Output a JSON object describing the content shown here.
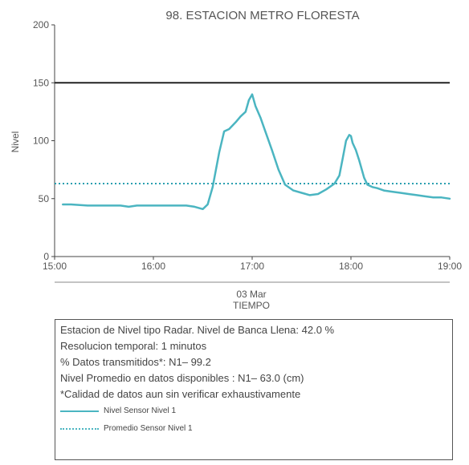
{
  "chart_data": {
    "type": "line",
    "title": "98. ESTACION METRO FLORESTA",
    "ylabel": "Nivel",
    "xlabel": "TIEMPO",
    "date_label": "03 Mar",
    "ylim": [
      0,
      200
    ],
    "xlim": [
      "15:00",
      "19:00"
    ],
    "y_ticks": [
      "0",
      "50",
      "100",
      "150",
      "200"
    ],
    "x_ticks": [
      "15:00",
      "16:00",
      "17:00",
      "18:00",
      "19:00"
    ],
    "reference_lines": [
      {
        "value": 150,
        "color": "#222222",
        "style": "solid"
      },
      {
        "value": 63,
        "color": "#2a9fb0",
        "style": "dotted"
      }
    ],
    "series": [
      {
        "name": "Nivel Sensor Nivel 1",
        "color": "#4bb5c1",
        "x": [
          "15:05",
          "15:10",
          "15:20",
          "15:30",
          "15:40",
          "15:45",
          "15:50",
          "16:00",
          "16:10",
          "16:20",
          "16:25",
          "16:30",
          "16:33",
          "16:36",
          "16:40",
          "16:43",
          "16:46",
          "16:50",
          "16:53",
          "16:56",
          "16:58",
          "17:00",
          "17:02",
          "17:05",
          "17:08",
          "17:12",
          "17:16",
          "17:20",
          "17:25",
          "17:30",
          "17:35",
          "17:40",
          "17:45",
          "17:50",
          "17:53",
          "17:55",
          "17:57",
          "17:59",
          "18:00",
          "18:01",
          "18:03",
          "18:05",
          "18:08",
          "18:10",
          "18:13",
          "18:16",
          "18:20",
          "18:25",
          "18:30",
          "18:35",
          "18:40",
          "18:45",
          "18:50",
          "18:55",
          "19:00"
        ],
        "values": [
          45,
          45,
          44,
          44,
          44,
          43,
          44,
          44,
          44,
          44,
          43,
          41,
          45,
          60,
          90,
          108,
          110,
          116,
          121,
          125,
          135,
          140,
          130,
          120,
          108,
          92,
          75,
          62,
          57,
          55,
          53,
          54,
          58,
          63,
          70,
          85,
          100,
          105,
          104,
          98,
          92,
          83,
          68,
          62,
          60,
          59,
          57,
          56,
          55,
          54,
          53,
          52,
          51,
          51,
          50
        ]
      },
      {
        "name": "Promedio Sensor Nivel 1",
        "color": "#2a9fb0",
        "x": [
          "15:00",
          "19:00"
        ],
        "values": [
          63,
          63
        ]
      }
    ]
  },
  "info": {
    "lines": [
      "Estacion de Nivel tipo Radar. Nivel de Banca Llena: 42.0 %",
      "Resolucion temporal: 1 minutos",
      "% Datos transmitidos*: N1– 99.2",
      "Nivel Promedio en datos disponibles : N1– 63.0 (cm)",
      "*Calidad de datos aun sin verificar exhaustivamente"
    ],
    "legend": [
      {
        "label": "Nivel Sensor Nivel 1",
        "style": "solid"
      },
      {
        "label": "Promedio Sensor Nivel 1",
        "style": "dotted"
      }
    ]
  }
}
